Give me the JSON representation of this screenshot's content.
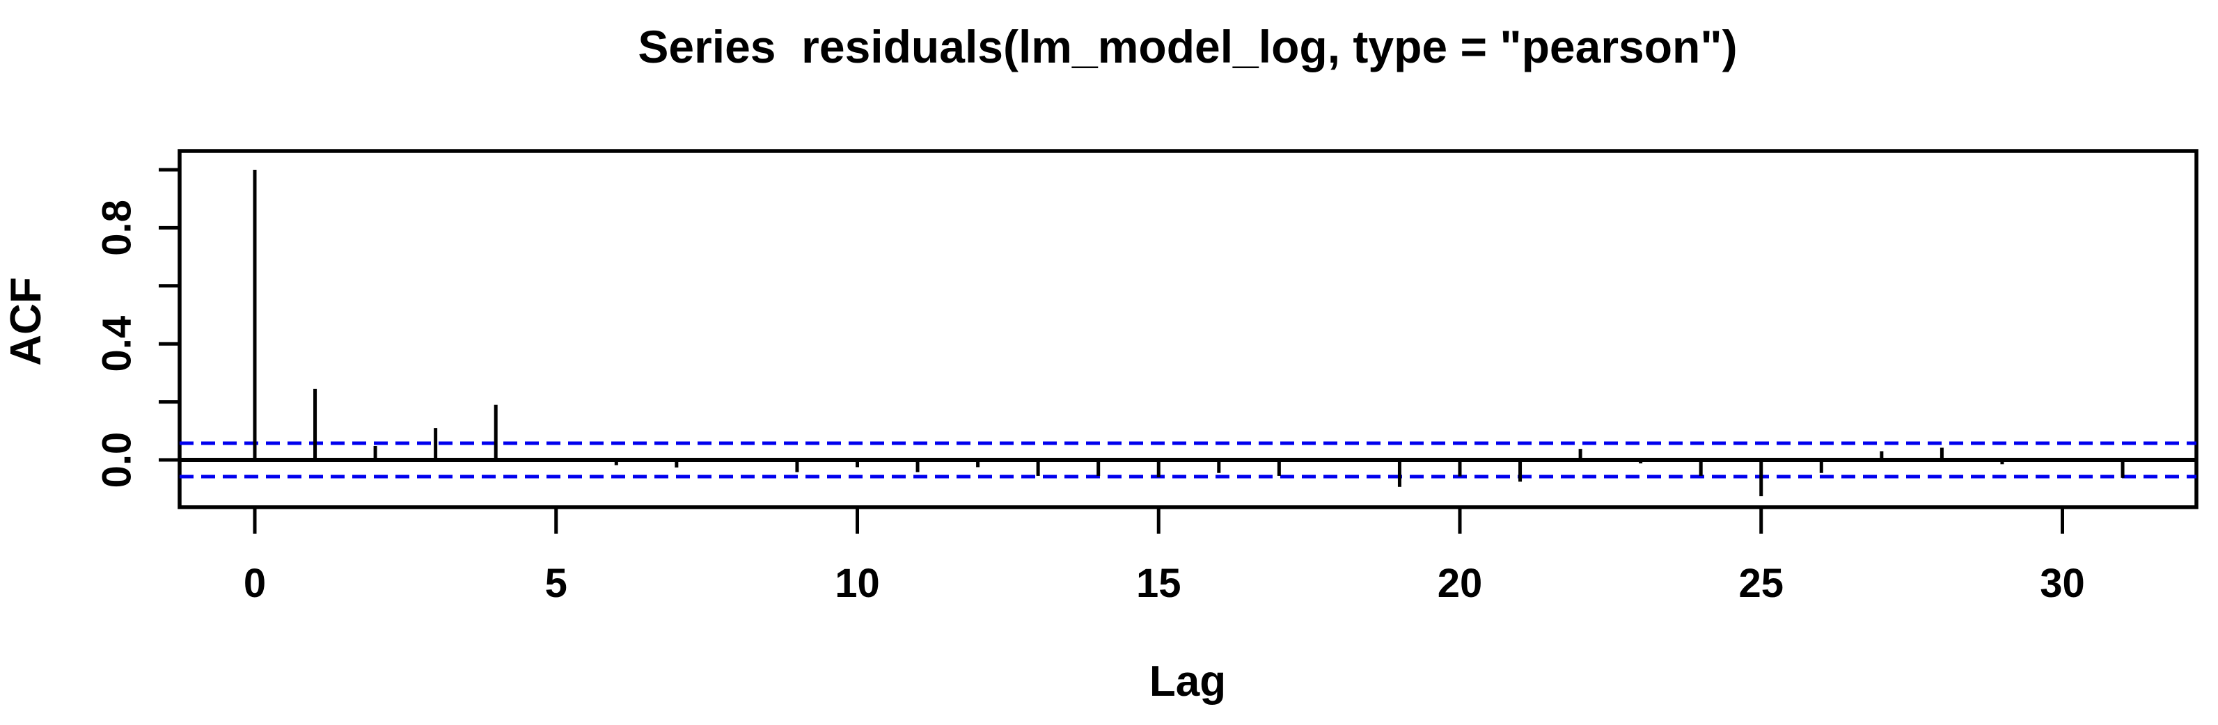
{
  "chart_data": {
    "type": "bar",
    "subtype": "acf-stem-plot",
    "title": "Series  residuals(lm_model_log, type = \"pearson\")",
    "xlabel": "Lag",
    "ylabel": "ACF",
    "x": [
      0,
      1,
      2,
      3,
      4,
      5,
      6,
      7,
      8,
      9,
      10,
      11,
      12,
      13,
      14,
      15,
      16,
      17,
      18,
      19,
      20,
      21,
      22,
      23,
      24,
      25,
      26,
      27,
      28,
      29,
      30,
      31
    ],
    "values": [
      1.0,
      0.245,
      0.048,
      0.11,
      0.19,
      0.004,
      -0.018,
      -0.026,
      -0.005,
      -0.042,
      -0.025,
      -0.042,
      -0.025,
      -0.055,
      -0.055,
      -0.06,
      -0.045,
      -0.055,
      -0.005,
      -0.093,
      -0.057,
      -0.075,
      0.038,
      -0.012,
      -0.055,
      -0.125,
      -0.045,
      0.03,
      0.042,
      -0.015,
      -0.005,
      -0.062
    ],
    "confidence_interval": 0.0575,
    "confidence_line_style": "dashed",
    "confidence_color": "#0000EE",
    "bar_color": "#000000",
    "x_tick_labels": [
      "0",
      "5",
      "10",
      "15",
      "20",
      "25",
      "30"
    ],
    "x_tick_values": [
      0,
      5,
      10,
      15,
      20,
      25,
      30
    ],
    "y_tick_labeled_text": [
      "0.0",
      "0.4",
      "0.8"
    ],
    "y_tick_labeled_values": [
      0.0,
      0.4,
      0.8
    ],
    "y_tick_minor_values": [
      0.0,
      0.2,
      0.4,
      0.6,
      0.8,
      1.0
    ],
    "xlim": [
      -1.25,
      32.25
    ],
    "ylim": [
      -0.163,
      1.065
    ],
    "grid": false,
    "legend": "none"
  }
}
